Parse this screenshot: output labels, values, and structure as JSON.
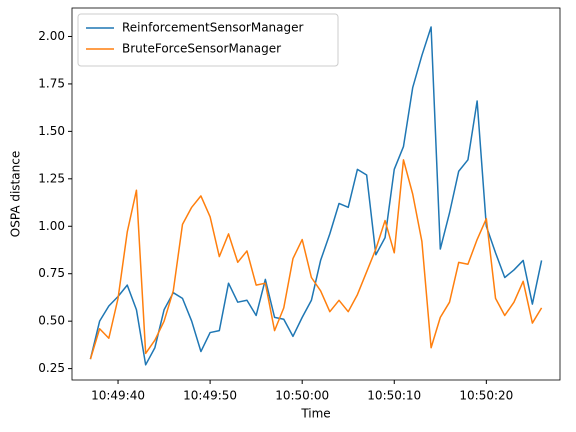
{
  "chart_data": {
    "type": "line",
    "xlabel": "Time",
    "ylabel": "OSPA distance",
    "x": [
      "10:49:37",
      "10:49:38",
      "10:49:39",
      "10:49:40",
      "10:49:41",
      "10:49:42",
      "10:49:43",
      "10:49:44",
      "10:49:45",
      "10:49:46",
      "10:49:47",
      "10:49:48",
      "10:49:49",
      "10:49:50",
      "10:49:51",
      "10:49:52",
      "10:49:53",
      "10:49:54",
      "10:49:55",
      "10:49:56",
      "10:49:57",
      "10:49:58",
      "10:49:59",
      "10:50:00",
      "10:50:01",
      "10:50:02",
      "10:50:03",
      "10:50:04",
      "10:50:05",
      "10:50:06",
      "10:50:07",
      "10:50:08",
      "10:50:09",
      "10:50:10",
      "10:50:11",
      "10:50:12",
      "10:50:13",
      "10:50:14",
      "10:50:15",
      "10:50:16",
      "10:50:17",
      "10:50:18",
      "10:50:19",
      "10:50:20",
      "10:50:21",
      "10:50:22",
      "10:50:23",
      "10:50:24",
      "10:50:25",
      "10:50:26"
    ],
    "series": [
      {
        "name": "ReinforcementSensorManager",
        "color": "#1f77b4",
        "values": [
          0.3,
          0.5,
          0.58,
          0.63,
          0.69,
          0.56,
          0.27,
          0.36,
          0.56,
          0.65,
          0.62,
          0.5,
          0.34,
          0.44,
          0.45,
          0.7,
          0.6,
          0.61,
          0.53,
          0.72,
          0.52,
          0.51,
          0.42,
          0.52,
          0.61,
          0.82,
          0.96,
          1.12,
          1.1,
          1.3,
          1.27,
          0.85,
          0.94,
          1.3,
          1.42,
          1.73,
          1.9,
          2.05,
          0.88,
          1.07,
          1.29,
          1.35,
          1.66,
          1.0,
          0.86,
          0.73,
          0.77,
          0.82,
          0.59,
          0.82
        ]
      },
      {
        "name": "BruteForceSensorManager",
        "color": "#ff7f0e",
        "values": [
          0.3,
          0.46,
          0.41,
          0.62,
          0.97,
          1.19,
          0.33,
          0.4,
          0.5,
          0.66,
          1.01,
          1.1,
          1.16,
          1.05,
          0.84,
          0.96,
          0.81,
          0.87,
          0.69,
          0.7,
          0.45,
          0.57,
          0.83,
          0.93,
          0.73,
          0.66,
          0.55,
          0.61,
          0.55,
          0.64,
          0.76,
          0.88,
          1.03,
          0.86,
          1.35,
          1.17,
          0.92,
          0.36,
          0.52,
          0.6,
          0.81,
          0.8,
          0.93,
          1.04,
          0.62,
          0.53,
          0.6,
          0.71,
          0.49,
          0.57
        ]
      }
    ],
    "xlim": [
      "10:49:35",
      "10:50:28"
    ],
    "xticks": [
      "10:49:40",
      "10:49:50",
      "10:50:00",
      "10:50:10",
      "10:50:20"
    ],
    "ylim": [
      0.19,
      2.15
    ],
    "yticks": [
      0.25,
      {
        "value": 0.5,
        "label": "0.50"
      },
      0.75,
      {
        "value": 1,
        "label": "1.00"
      },
      1.25,
      {
        "value": 1.5,
        "label": "1.50"
      },
      1.75,
      {
        "value": 2,
        "label": "2.00"
      }
    ],
    "legend": "upper left",
    "grid": false
  }
}
